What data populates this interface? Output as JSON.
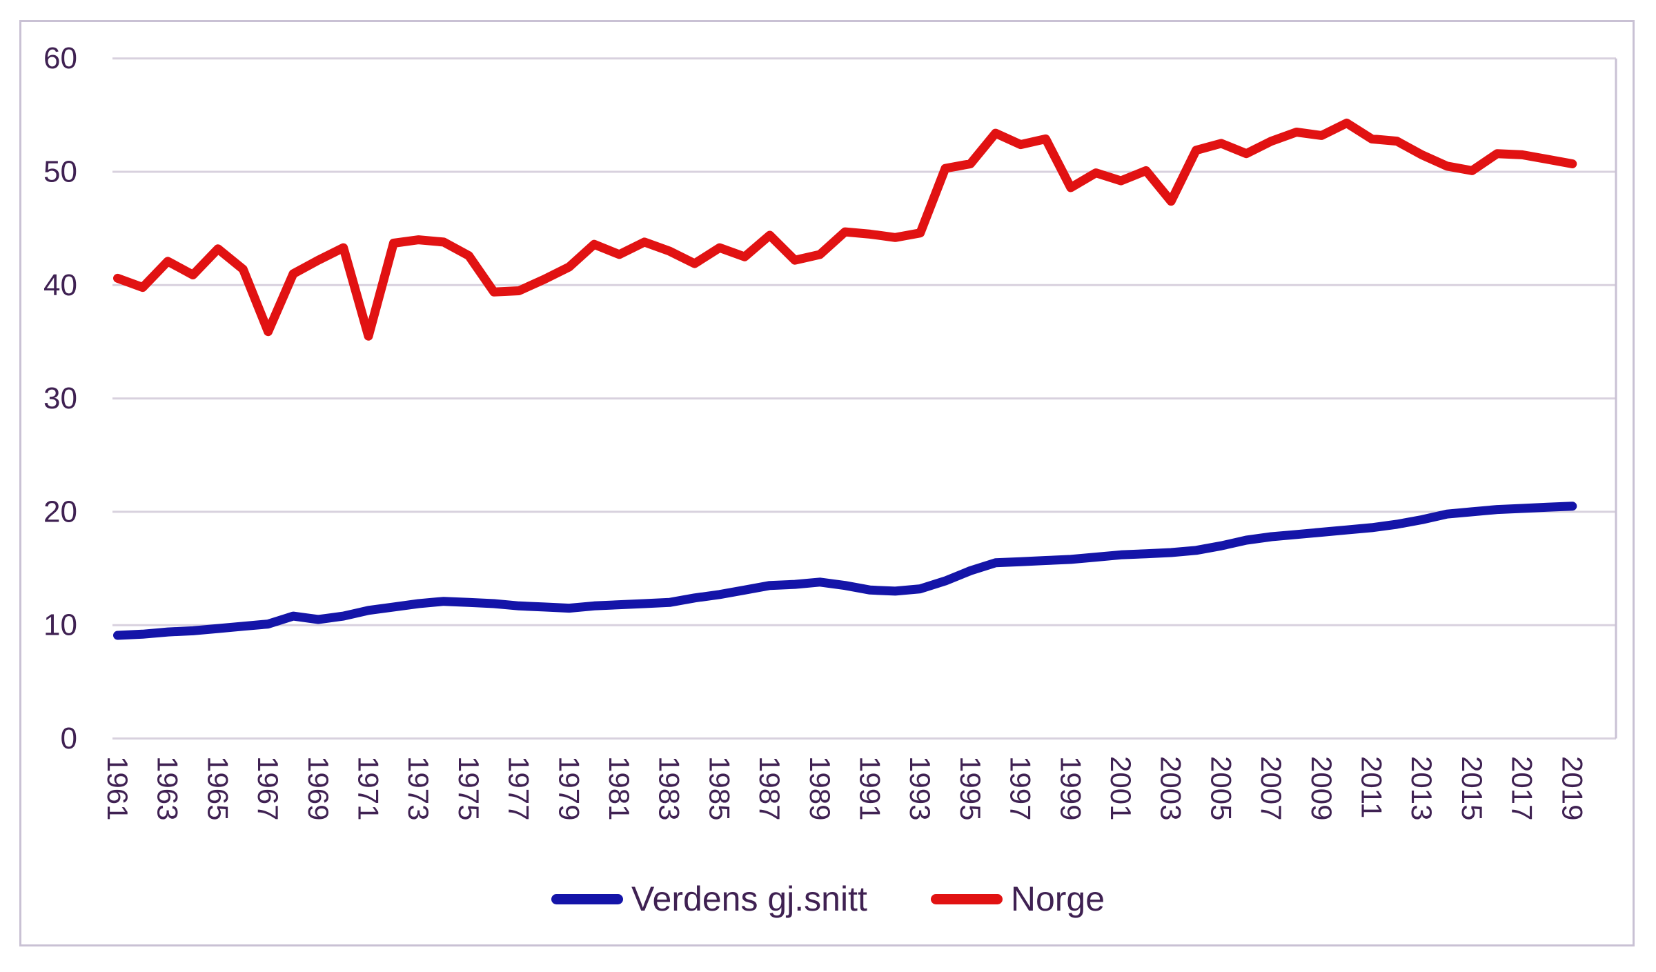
{
  "chart_data": {
    "type": "line",
    "x_years": [
      1961,
      1962,
      1963,
      1964,
      1965,
      1966,
      1967,
      1968,
      1969,
      1970,
      1971,
      1972,
      1973,
      1974,
      1975,
      1976,
      1977,
      1978,
      1979,
      1980,
      1981,
      1982,
      1983,
      1984,
      1985,
      1986,
      1987,
      1988,
      1989,
      1990,
      1991,
      1992,
      1993,
      1994,
      1995,
      1996,
      1997,
      1998,
      1999,
      2000,
      2001,
      2002,
      2003,
      2004,
      2005,
      2006,
      2007,
      2008,
      2009,
      2010,
      2011,
      2012,
      2013,
      2014,
      2015,
      2016,
      2017,
      2018,
      2019
    ],
    "series": [
      {
        "name": "Verdens gj.snitt",
        "color": "#1414a8",
        "values": [
          9.1,
          9.2,
          9.4,
          9.5,
          9.7,
          9.9,
          10.1,
          10.8,
          10.5,
          10.8,
          11.3,
          11.6,
          11.9,
          12.1,
          12.0,
          11.9,
          11.7,
          11.6,
          11.5,
          11.7,
          11.8,
          11.9,
          12.0,
          12.4,
          12.7,
          13.1,
          13.5,
          13.6,
          13.8,
          13.5,
          13.1,
          13.0,
          13.2,
          13.9,
          14.8,
          15.5,
          15.6,
          15.7,
          15.8,
          16.0,
          16.2,
          16.3,
          16.4,
          16.6,
          17.0,
          17.5,
          17.8,
          18.0,
          18.2,
          18.4,
          18.6,
          18.9,
          19.3,
          19.8,
          20.0,
          20.2,
          20.3,
          20.4,
          20.5
        ]
      },
      {
        "name": "Norge",
        "color": "#e11212",
        "values": [
          40.6,
          39.8,
          42.1,
          40.9,
          43.2,
          41.4,
          35.9,
          41.0,
          42.2,
          43.3,
          35.5,
          43.7,
          44.0,
          43.8,
          42.6,
          39.4,
          39.5,
          40.5,
          41.6,
          43.6,
          42.7,
          43.8,
          43.0,
          41.9,
          43.3,
          42.5,
          44.4,
          42.2,
          42.7,
          44.7,
          44.5,
          44.2,
          44.6,
          50.3,
          50.7,
          53.4,
          52.4,
          52.9,
          48.6,
          49.9,
          49.2,
          50.1,
          47.4,
          51.9,
          52.5,
          51.6,
          52.7,
          53.5,
          53.2,
          54.3,
          52.9,
          52.7,
          51.5,
          50.5,
          50.1,
          51.6,
          51.5,
          51.1,
          50.7
        ]
      }
    ],
    "xtick_labels": [
      "1961",
      "1963",
      "1965",
      "1967",
      "1969",
      "1971",
      "1973",
      "1975",
      "1977",
      "1979",
      "1981",
      "1983",
      "1985",
      "1987",
      "1989",
      "1991",
      "1993",
      "1995",
      "1997",
      "1999",
      "2001",
      "2003",
      "2005",
      "2007",
      "2009",
      "2011",
      "2013",
      "2015",
      "2017",
      "2019"
    ],
    "ytick_labels": [
      "0",
      "10",
      "20",
      "30",
      "40",
      "50",
      "60"
    ],
    "yticks": [
      0,
      10,
      20,
      30,
      40,
      50,
      60
    ],
    "ylim": [
      0,
      60
    ],
    "grid": "horizontal",
    "legend_position": "bottom",
    "colors": {
      "axis_text": "#3f2152",
      "gridline": "#d8d1de",
      "plot_border": "#c9c1d4",
      "frame_border": "#c9c1d4",
      "background": "#ffffff"
    }
  }
}
